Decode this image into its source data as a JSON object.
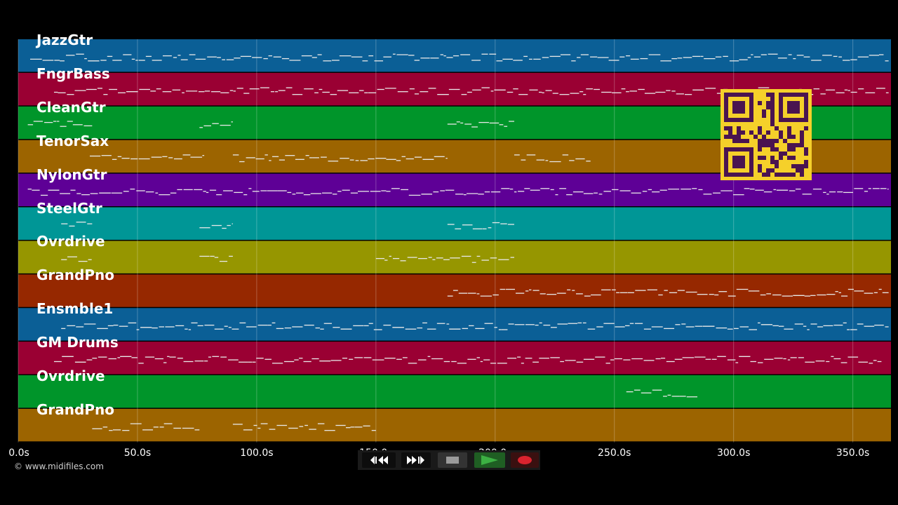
{
  "tracks": [
    {
      "name": "JazzGtr",
      "color": "#0b5f96"
    },
    {
      "name": "FngrBass",
      "color": "#9a0033"
    },
    {
      "name": "CleanGtr",
      "color": "#00952a"
    },
    {
      "name": "TenorSax",
      "color": "#9c6400"
    },
    {
      "name": "NylonGtr",
      "color": "#5e0096"
    },
    {
      "name": "SteelGtr",
      "color": "#009696"
    },
    {
      "name": "Ovrdrive",
      "color": "#969600"
    },
    {
      "name": "GrandPno",
      "color": "#962800"
    },
    {
      "name": "Ensmble1",
      "color": "#0b5f96"
    },
    {
      "name": "GM Drums",
      "color": "#9a0033"
    },
    {
      "name": "Ovrdrive",
      "color": "#00952a"
    },
    {
      "name": "GrandPno",
      "color": "#9c6400"
    }
  ],
  "timeline": {
    "ticks": [
      "0.0s",
      "50.0s",
      "100.0s",
      "150.0s",
      "200.0s",
      "250.0s",
      "300.0s",
      "350.0s"
    ],
    "tick_values": [
      0,
      50,
      100,
      150,
      200,
      250,
      300,
      350
    ],
    "max_seconds": 366
  },
  "footer": {
    "copyright": "© www.midifiles.com"
  },
  "transport": {
    "rewind_icon": "rewind-icon",
    "forward_icon": "fast-forward-icon",
    "stop_icon": "stop-icon",
    "play_icon": "play-icon",
    "record_icon": "record-icon",
    "play_color": "#3cb043",
    "record_color": "#d9232e"
  },
  "qr": {
    "color": "#f5d02a",
    "module_color": "#4a1450"
  }
}
